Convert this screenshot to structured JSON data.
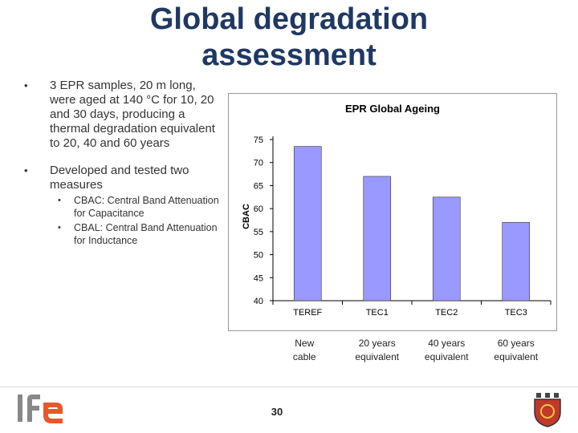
{
  "slide": {
    "title": "Global degradation assessment",
    "page_number": "30",
    "bullets": [
      {
        "bullet": "•",
        "text": "3 EPR samples, 20 m long, were aged at 140 °C for 10, 20 and 30 days, producing a thermal degradation equivalent to 20, 40 and 60 years"
      },
      {
        "bullet": "•",
        "text": "Developed and tested two measures",
        "sub": [
          {
            "bullet": "•",
            "text": "CBAC: Central Band Attenuation for Capacitance"
          },
          {
            "bullet": "•",
            "text": "CBAL: Central Band Attenuation for Inductance"
          }
        ]
      }
    ]
  },
  "chart_data": {
    "type": "bar",
    "title": "EPR Global Ageing",
    "ylabel": "CBAC",
    "xlabel": "",
    "categories": [
      "TEREF",
      "TEC1",
      "TEC2",
      "TEC3"
    ],
    "values": [
      73.5,
      67.0,
      62.5,
      57.0
    ],
    "ylim": [
      40,
      75
    ],
    "yticks": [
      40,
      45,
      50,
      55,
      60,
      65,
      70,
      75
    ],
    "bar_color": "#9999ff",
    "grid": false,
    "annotations": [
      [
        "New",
        "cable"
      ],
      [
        "20 years",
        "equivalent"
      ],
      [
        "40 years",
        "equivalent"
      ],
      [
        "60 years",
        "equivalent"
      ]
    ]
  },
  "colors": {
    "title": "#1f3864",
    "logo_left": "#e8572b",
    "logo_right": "#c0392b"
  }
}
